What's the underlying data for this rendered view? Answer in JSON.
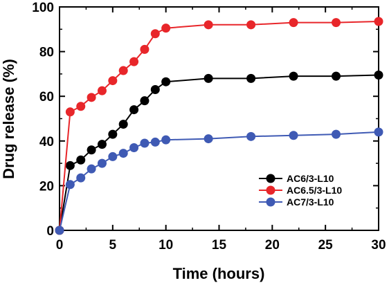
{
  "chart_data": {
    "type": "line",
    "title": "",
    "xlabel": "Time (hours)",
    "ylabel": "Drug release (%)",
    "xlim": [
      0,
      30
    ],
    "ylim": [
      0,
      100
    ],
    "xticks": [
      0,
      5,
      10,
      15,
      20,
      25,
      30
    ],
    "yticks": [
      0,
      20,
      40,
      60,
      80,
      100
    ],
    "grid": false,
    "legend_position": "bottom-right",
    "series": [
      {
        "name": "AC6/3-L10",
        "color": "#000000",
        "x": [
          0,
          1,
          2,
          3,
          4,
          5,
          6,
          7,
          8,
          9,
          10,
          14,
          18,
          22,
          26,
          30
        ],
        "y": [
          0,
          29,
          31.5,
          36,
          38.5,
          43,
          47.5,
          54,
          58,
          63,
          66.5,
          68,
          68,
          69,
          69,
          69.5
        ]
      },
      {
        "name": "AC6.5/3-L10",
        "color": "#e8262a",
        "x": [
          0,
          1,
          2,
          3,
          4,
          5,
          6,
          7,
          8,
          9,
          10,
          14,
          18,
          22,
          26,
          30
        ],
        "y": [
          0,
          53,
          55.5,
          59.5,
          62.5,
          67,
          71.5,
          75.5,
          81,
          88,
          90.5,
          92,
          92,
          93,
          93,
          93.5
        ]
      },
      {
        "name": "AC7/3-L10",
        "color": "#3f5ab4",
        "x": [
          0,
          1,
          2,
          3,
          4,
          5,
          6,
          7,
          8,
          9,
          10,
          14,
          18,
          22,
          26,
          30
        ],
        "y": [
          0,
          20.5,
          23.5,
          27.5,
          30,
          33,
          34.5,
          37,
          39,
          39.5,
          40.5,
          41,
          42,
          42.5,
          43,
          44
        ]
      }
    ]
  }
}
